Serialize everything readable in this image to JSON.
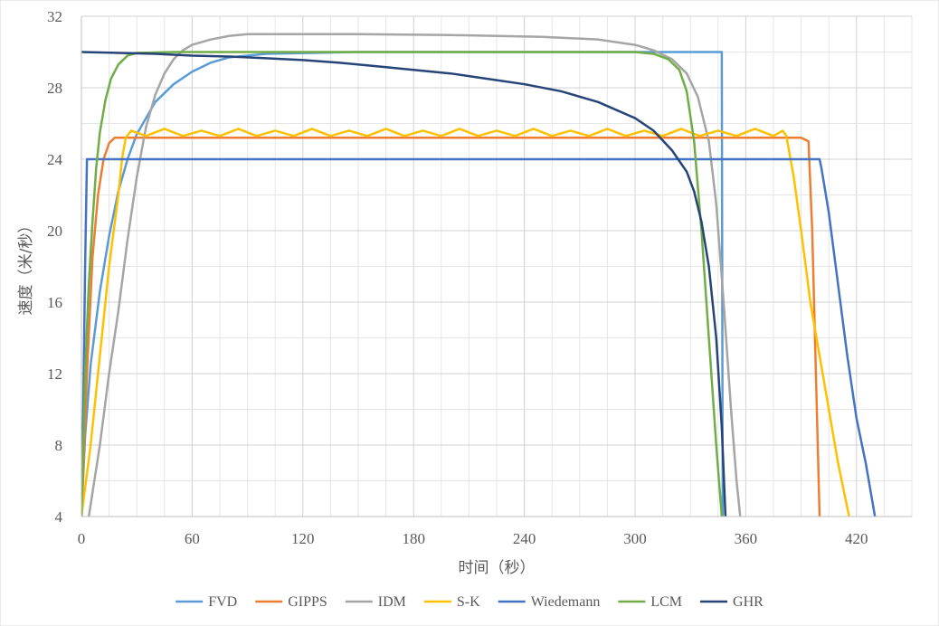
{
  "chart_data": {
    "type": "line",
    "title": "",
    "xlabel": "时间（秒）",
    "ylabel": "速度（米/秒）",
    "xlim": [
      0,
      450
    ],
    "ylim": [
      4,
      32
    ],
    "x_ticks": [
      0,
      60,
      120,
      180,
      240,
      300,
      360,
      420
    ],
    "y_ticks": [
      4,
      8,
      12,
      16,
      20,
      24,
      28,
      32
    ],
    "x_minor_step": 15,
    "y_minor_step": 2,
    "grid": true,
    "legend_position": "bottom",
    "series": [
      {
        "name": "FVD",
        "color": "#5B9BD5",
        "points": [
          [
            0,
            4
          ],
          [
            2,
            8.5
          ],
          [
            5,
            12.5
          ],
          [
            10,
            16.6
          ],
          [
            15,
            19.7
          ],
          [
            20,
            22.2
          ],
          [
            25,
            24
          ],
          [
            30,
            25.4
          ],
          [
            40,
            27.2
          ],
          [
            50,
            28.2
          ],
          [
            60,
            28.9
          ],
          [
            70,
            29.4
          ],
          [
            80,
            29.7
          ],
          [
            100,
            29.9
          ],
          [
            150,
            30
          ],
          [
            200,
            30
          ],
          [
            250,
            30
          ],
          [
            300,
            30
          ],
          [
            347,
            30
          ],
          [
            347.5,
            4
          ]
        ]
      },
      {
        "name": "GIPPS",
        "color": "#ED7D31",
        "points": [
          [
            0,
            4
          ],
          [
            3,
            12
          ],
          [
            6,
            18.5
          ],
          [
            9,
            22
          ],
          [
            12,
            24
          ],
          [
            15,
            24.9
          ],
          [
            18,
            25.2
          ],
          [
            25,
            25.2
          ],
          [
            100,
            25.2
          ],
          [
            200,
            25.2
          ],
          [
            300,
            25.2
          ],
          [
            390,
            25.2
          ],
          [
            394,
            25
          ],
          [
            396,
            20
          ],
          [
            398,
            12
          ],
          [
            400,
            4
          ]
        ]
      },
      {
        "name": "IDM",
        "color": "#A5A5A5",
        "points": [
          [
            4,
            4
          ],
          [
            10,
            8
          ],
          [
            15,
            12
          ],
          [
            20,
            15.5
          ],
          [
            25,
            19.5
          ],
          [
            30,
            23
          ],
          [
            35,
            25.8
          ],
          [
            40,
            27.6
          ],
          [
            45,
            28.8
          ],
          [
            50,
            29.6
          ],
          [
            55,
            30.1
          ],
          [
            60,
            30.4
          ],
          [
            70,
            30.7
          ],
          [
            80,
            30.9
          ],
          [
            90,
            31
          ],
          [
            150,
            31
          ],
          [
            200,
            30.95
          ],
          [
            250,
            30.85
          ],
          [
            280,
            30.7
          ],
          [
            300,
            30.4
          ],
          [
            310,
            30.1
          ],
          [
            320,
            29.6
          ],
          [
            328,
            28.8
          ],
          [
            334,
            27.5
          ],
          [
            340,
            25
          ],
          [
            344,
            21.5
          ],
          [
            348,
            16
          ],
          [
            352,
            10
          ],
          [
            355,
            6
          ],
          [
            357,
            4
          ]
        ]
      },
      {
        "name": "S-K",
        "color": "#FFC000",
        "points": [
          [
            0,
            4
          ],
          [
            5,
            8
          ],
          [
            10,
            13
          ],
          [
            15,
            18
          ],
          [
            20,
            22
          ],
          [
            22,
            24
          ],
          [
            24,
            25.2
          ],
          [
            27,
            25.6
          ],
          [
            35,
            25.3
          ],
          [
            45,
            25.7
          ],
          [
            55,
            25.3
          ],
          [
            65,
            25.6
          ],
          [
            75,
            25.3
          ],
          [
            85,
            25.7
          ],
          [
            95,
            25.3
          ],
          [
            105,
            25.6
          ],
          [
            115,
            25.3
          ],
          [
            125,
            25.7
          ],
          [
            135,
            25.3
          ],
          [
            145,
            25.6
          ],
          [
            155,
            25.3
          ],
          [
            165,
            25.7
          ],
          [
            175,
            25.3
          ],
          [
            185,
            25.6
          ],
          [
            195,
            25.3
          ],
          [
            205,
            25.7
          ],
          [
            215,
            25.3
          ],
          [
            225,
            25.6
          ],
          [
            235,
            25.3
          ],
          [
            245,
            25.7
          ],
          [
            255,
            25.3
          ],
          [
            265,
            25.6
          ],
          [
            275,
            25.3
          ],
          [
            285,
            25.7
          ],
          [
            295,
            25.3
          ],
          [
            305,
            25.6
          ],
          [
            315,
            25.3
          ],
          [
            325,
            25.7
          ],
          [
            335,
            25.3
          ],
          [
            345,
            25.6
          ],
          [
            355,
            25.3
          ],
          [
            365,
            25.7
          ],
          [
            375,
            25.3
          ],
          [
            380,
            25.6
          ],
          [
            382,
            25.3
          ],
          [
            386,
            23
          ],
          [
            390,
            20
          ],
          [
            395,
            16
          ],
          [
            400,
            13
          ],
          [
            405,
            10
          ],
          [
            410,
            7
          ],
          [
            415,
            4.5
          ],
          [
            416,
            4
          ]
        ]
      },
      {
        "name": "Wiedemann",
        "color": "#4472C4",
        "points": [
          [
            0,
            4
          ],
          [
            1,
            10
          ],
          [
            2,
            18
          ],
          [
            3,
            24
          ],
          [
            100,
            24
          ],
          [
            200,
            24
          ],
          [
            300,
            24
          ],
          [
            400,
            24
          ],
          [
            401,
            23.5
          ],
          [
            405,
            21
          ],
          [
            410,
            17
          ],
          [
            415,
            13
          ],
          [
            420,
            9.5
          ],
          [
            425,
            7
          ],
          [
            430,
            4
          ]
        ]
      },
      {
        "name": "LCM",
        "color": "#70AD47",
        "points": [
          [
            0,
            4
          ],
          [
            1,
            8
          ],
          [
            2,
            12
          ],
          [
            4,
            17
          ],
          [
            6,
            20.5
          ],
          [
            8,
            23.5
          ],
          [
            10,
            25.5
          ],
          [
            13,
            27.3
          ],
          [
            16,
            28.5
          ],
          [
            20,
            29.3
          ],
          [
            25,
            29.8
          ],
          [
            30,
            29.95
          ],
          [
            50,
            30
          ],
          [
            100,
            30
          ],
          [
            200,
            30
          ],
          [
            300,
            30
          ],
          [
            310,
            29.9
          ],
          [
            318,
            29.6
          ],
          [
            324,
            29
          ],
          [
            328,
            27.8
          ],
          [
            332,
            25
          ],
          [
            336,
            20
          ],
          [
            340,
            14
          ],
          [
            344,
            8
          ],
          [
            347,
            4
          ]
        ]
      },
      {
        "name": "GHR",
        "color": "#264478",
        "points": [
          [
            0,
            30
          ],
          [
            20,
            29.95
          ],
          [
            40,
            29.9
          ],
          [
            60,
            29.8
          ],
          [
            80,
            29.75
          ],
          [
            100,
            29.65
          ],
          [
            120,
            29.55
          ],
          [
            140,
            29.4
          ],
          [
            160,
            29.2
          ],
          [
            180,
            29
          ],
          [
            200,
            28.8
          ],
          [
            220,
            28.5
          ],
          [
            240,
            28.2
          ],
          [
            260,
            27.8
          ],
          [
            280,
            27.2
          ],
          [
            300,
            26.3
          ],
          [
            310,
            25.6
          ],
          [
            320,
            24.5
          ],
          [
            328,
            23.3
          ],
          [
            332,
            22.2
          ],
          [
            336,
            20.5
          ],
          [
            340,
            18
          ],
          [
            344,
            14
          ],
          [
            347,
            9
          ],
          [
            349,
            4
          ]
        ]
      }
    ]
  }
}
